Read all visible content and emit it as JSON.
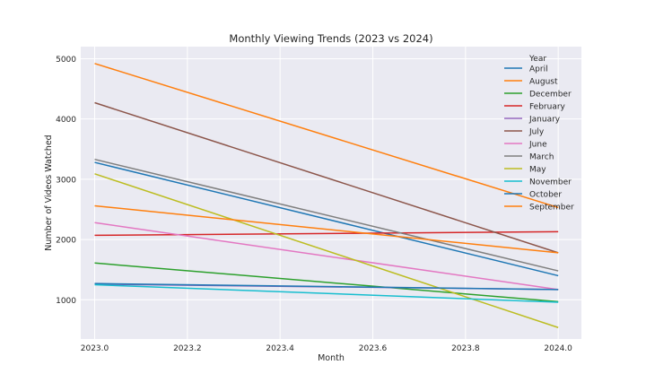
{
  "chart_data": {
    "type": "line",
    "title": "Monthly Viewing Trends (2023 vs 2024)",
    "xlabel": "Month",
    "ylabel": "Number of Videos Watched",
    "x": [
      2023.0,
      2024.0
    ],
    "xlim": [
      2022.97,
      2024.05
    ],
    "ylim": [
      350,
      5200
    ],
    "xticks": [
      2023.0,
      2023.2,
      2023.4,
      2023.6,
      2023.8,
      2024.0
    ],
    "xtick_labels": [
      "2023.0",
      "2023.2",
      "2023.4",
      "2023.6",
      "2023.8",
      "2024.0"
    ],
    "yticks": [
      1000,
      2000,
      3000,
      4000,
      5000
    ],
    "ytick_labels": [
      "1000",
      "2000",
      "3000",
      "4000",
      "5000"
    ],
    "grid": true,
    "legend_title": "Year",
    "legend_position": "upper-right",
    "series": [
      {
        "name": "April",
        "color": "#1f77b4",
        "values": [
          3280,
          1400
        ]
      },
      {
        "name": "August",
        "color": "#ff7f0e",
        "values": [
          4920,
          2530
        ]
      },
      {
        "name": "December",
        "color": "#2ca02c",
        "values": [
          1610,
          970
        ]
      },
      {
        "name": "February",
        "color": "#d62728",
        "values": [
          2070,
          2130
        ]
      },
      {
        "name": "January",
        "color": "#9467bd",
        "values": [
          1260,
          1170
        ]
      },
      {
        "name": "July",
        "color": "#8c564b",
        "values": [
          4270,
          1780
        ]
      },
      {
        "name": "June",
        "color": "#e377c2",
        "values": [
          2280,
          1170
        ]
      },
      {
        "name": "March",
        "color": "#7f7f7f",
        "values": [
          3330,
          1480
        ]
      },
      {
        "name": "May",
        "color": "#bcbd22",
        "values": [
          3090,
          540
        ]
      },
      {
        "name": "November",
        "color": "#17becf",
        "values": [
          1250,
          960
        ]
      },
      {
        "name": "October",
        "color": "#1f77b4",
        "values": [
          1270,
          1170
        ]
      },
      {
        "name": "September",
        "color": "#ff7f0e",
        "values": [
          2560,
          1780
        ]
      }
    ]
  }
}
